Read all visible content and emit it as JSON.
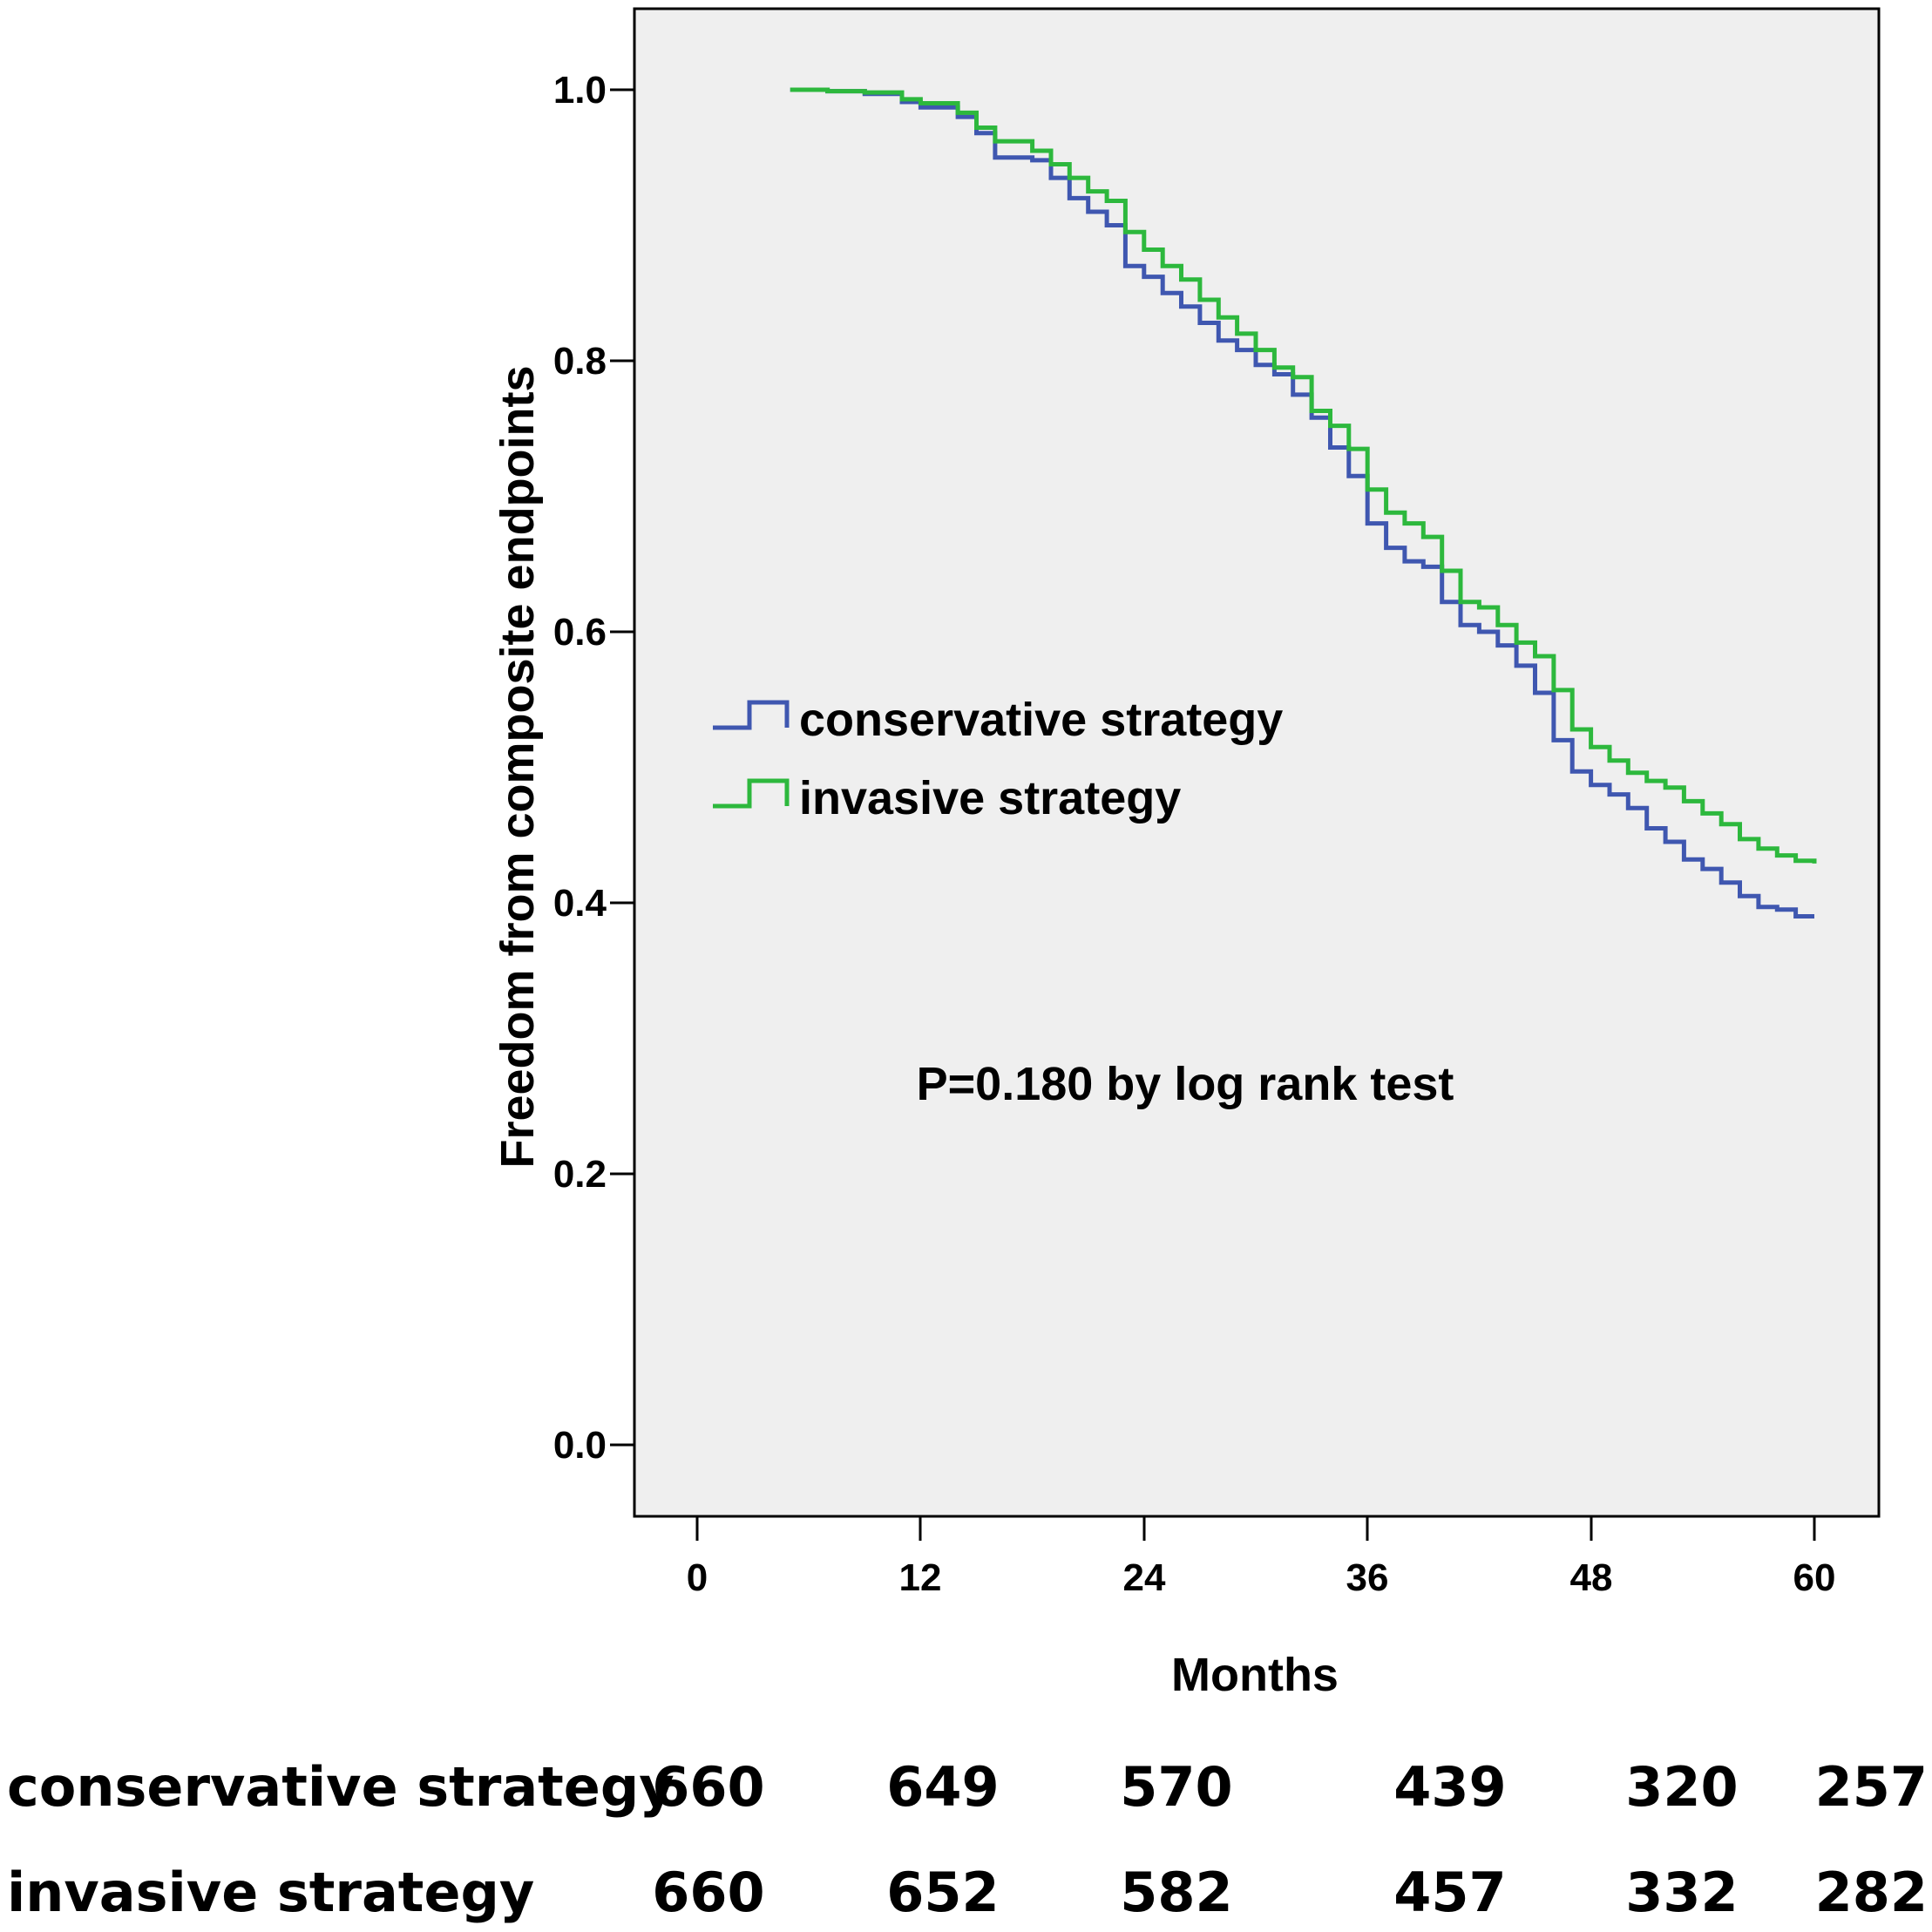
{
  "chart_data": {
    "type": "line",
    "subtype": "kaplan-meier-step",
    "title": "",
    "xlabel": "Months",
    "ylabel": "Freedom from composite endpoints",
    "xlim": [
      -3.5,
      63.3
    ],
    "ylim": [
      -0.055,
      1.11
    ],
    "x_ticks": [
      0,
      12,
      24,
      36,
      48,
      60
    ],
    "x_tick_labels": [
      "0",
      "12",
      "24",
      "36",
      "48",
      "60"
    ],
    "y_ticks": [
      0.0,
      0.2,
      0.4,
      0.6,
      0.8,
      1.0
    ],
    "y_tick_labels": [
      "0.0",
      "0.2",
      "0.4",
      "0.6",
      "0.8",
      "1.0"
    ],
    "grid": false,
    "background": "#efefef",
    "legend_position": "center-left",
    "annotation": "P=0.180 by log rank test",
    "series": [
      {
        "name": "conservative strategy",
        "color": "#3f57b0",
        "points": [
          [
            5,
            1.0
          ],
          [
            7,
            0.999
          ],
          [
            9,
            0.997
          ],
          [
            11,
            0.991
          ],
          [
            12,
            0.987
          ],
          [
            14,
            0.98
          ],
          [
            15,
            0.968
          ],
          [
            16,
            0.95
          ],
          [
            18,
            0.948
          ],
          [
            19,
            0.935
          ],
          [
            20,
            0.92
          ],
          [
            21,
            0.91
          ],
          [
            22,
            0.9
          ],
          [
            23,
            0.87
          ],
          [
            24,
            0.862
          ],
          [
            25,
            0.85
          ],
          [
            26,
            0.84
          ],
          [
            27,
            0.828
          ],
          [
            28,
            0.815
          ],
          [
            29,
            0.808
          ],
          [
            30,
            0.797
          ],
          [
            31,
            0.79
          ],
          [
            32,
            0.775
          ],
          [
            33,
            0.758
          ],
          [
            34,
            0.736
          ],
          [
            35,
            0.715
          ],
          [
            36,
            0.68
          ],
          [
            37,
            0.662
          ],
          [
            38,
            0.652
          ],
          [
            39,
            0.648
          ],
          [
            40,
            0.622
          ],
          [
            41,
            0.605
          ],
          [
            42,
            0.6
          ],
          [
            43,
            0.59
          ],
          [
            44,
            0.575
          ],
          [
            45,
            0.555
          ],
          [
            46,
            0.52
          ],
          [
            47,
            0.497
          ],
          [
            48,
            0.487
          ],
          [
            49,
            0.48
          ],
          [
            50,
            0.47
          ],
          [
            51,
            0.455
          ],
          [
            52,
            0.445
          ],
          [
            53,
            0.432
          ],
          [
            54,
            0.425
          ],
          [
            55,
            0.415
          ],
          [
            56,
            0.405
          ],
          [
            57,
            0.397
          ],
          [
            58,
            0.395
          ],
          [
            59,
            0.39
          ],
          [
            60,
            0.39
          ]
        ]
      },
      {
        "name": "invasive strategy",
        "color": "#2db83d",
        "points": [
          [
            5,
            1.0
          ],
          [
            7,
            0.999
          ],
          [
            9,
            0.998
          ],
          [
            11,
            0.993
          ],
          [
            12,
            0.99
          ],
          [
            14,
            0.983
          ],
          [
            15,
            0.972
          ],
          [
            16,
            0.962
          ],
          [
            18,
            0.955
          ],
          [
            19,
            0.945
          ],
          [
            20,
            0.935
          ],
          [
            21,
            0.925
          ],
          [
            22,
            0.918
          ],
          [
            23,
            0.895
          ],
          [
            24,
            0.882
          ],
          [
            25,
            0.87
          ],
          [
            26,
            0.86
          ],
          [
            27,
            0.845
          ],
          [
            28,
            0.832
          ],
          [
            29,
            0.82
          ],
          [
            30,
            0.808
          ],
          [
            31,
            0.795
          ],
          [
            32,
            0.788
          ],
          [
            33,
            0.763
          ],
          [
            34,
            0.752
          ],
          [
            35,
            0.735
          ],
          [
            36,
            0.705
          ],
          [
            37,
            0.688
          ],
          [
            38,
            0.68
          ],
          [
            39,
            0.67
          ],
          [
            40,
            0.645
          ],
          [
            41,
            0.622
          ],
          [
            42,
            0.618
          ],
          [
            43,
            0.605
          ],
          [
            44,
            0.592
          ],
          [
            45,
            0.582
          ],
          [
            46,
            0.557
          ],
          [
            47,
            0.528
          ],
          [
            48,
            0.515
          ],
          [
            49,
            0.505
          ],
          [
            50,
            0.496
          ],
          [
            51,
            0.49
          ],
          [
            52,
            0.485
          ],
          [
            53,
            0.475
          ],
          [
            54,
            0.466
          ],
          [
            55,
            0.458
          ],
          [
            56,
            0.447
          ],
          [
            57,
            0.44
          ],
          [
            58,
            0.435
          ],
          [
            59,
            0.431
          ],
          [
            60,
            0.429
          ]
        ]
      }
    ],
    "risk_table": {
      "rows": [
        {
          "label": "conservative strategy",
          "values": [
            "660",
            "649",
            "570",
            "439",
            "320",
            "257"
          ]
        },
        {
          "label": "invasive strategy",
          "values": [
            "660",
            "652",
            "582",
            "457",
            "332",
            "282"
          ]
        }
      ]
    }
  }
}
